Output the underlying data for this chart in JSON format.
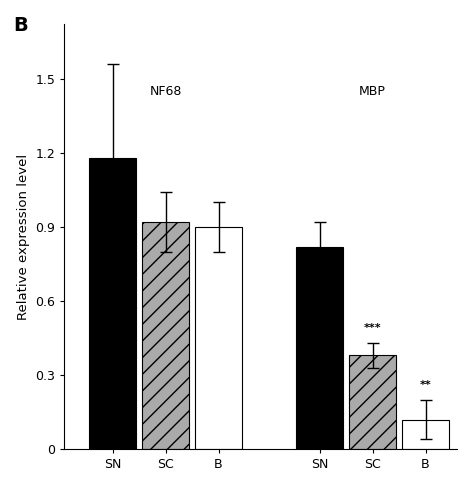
{
  "title": "B",
  "ylabel": "Relative expression level",
  "groups": [
    "NF68",
    "MBP"
  ],
  "categories": [
    "SN",
    "SC",
    "B"
  ],
  "values": [
    [
      1.18,
      0.92,
      0.9
    ],
    [
      0.82,
      0.38,
      0.12
    ]
  ],
  "errors": [
    [
      0.38,
      0.12,
      0.1
    ],
    [
      0.1,
      0.05,
      0.08
    ]
  ],
  "bar_facecolors": [
    "#000000",
    "#aaaaaa",
    "#ffffff"
  ],
  "bar_hatch": [
    "",
    "//",
    ""
  ],
  "significance": [
    "",
    "",
    "",
    "",
    "***",
    "**"
  ],
  "ylim": [
    0,
    1.72
  ],
  "yticks": [
    0.0,
    0.3,
    0.6,
    0.9,
    1.2,
    1.5
  ],
  "group_labels": [
    "NF68",
    "MBP"
  ],
  "group_label_fontsize": 9,
  "figsize": [
    4.74,
    4.88
  ],
  "dpi": 100
}
